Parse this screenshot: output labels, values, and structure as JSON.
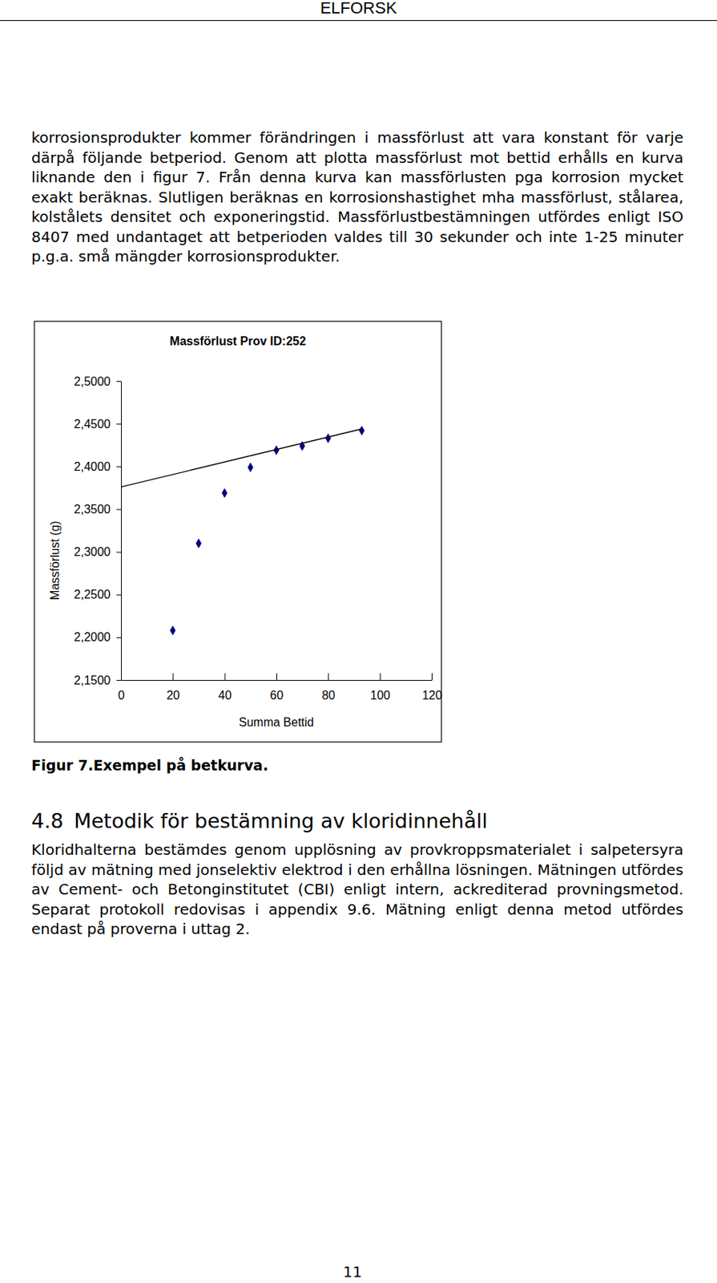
{
  "header": "ELFORSK",
  "paragraphs": [
    "korrosionsprodukter kommer förändringen i massförlust att vara konstant för varje därpå följande betperiod. Genom att plotta massförlust mot bettid erhålls en kurva liknande den i figur 7. Från denna kurva kan massförlusten pga korrosion mycket exakt beräknas. Slutligen beräknas en korrosionshastighet mha massförlust, stålarea, kolstålets densitet och exponeringstid. Massförlustbestämningen utfördes enligt ISO 8407 med undantaget att betperioden valdes till 30 sekunder och inte 1-25 minuter p.g.a. små mängder korrosionsprodukter.",
    "Kloridhalterna bestämdes genom upplösning av provkroppsmaterialet i salpetersyra följd av mätning med jonselektiv elektrod i den erhållna lösningen. Mätningen utfördes av Cement- och Betonginstitutet (CBI) enligt intern, ackrediterad provningsmetod. Separat protokoll redovisas i appendix 9.6. Mätning enligt denna metod utfördes endast på proverna i uttag 2."
  ],
  "caption": "Figur 7.Exempel på betkurva.",
  "section": {
    "number": "4.8",
    "title": "Metodik för bestämning av kloridinnehåll"
  },
  "page_number": "11",
  "chart_data": {
    "type": "scatter",
    "title": "Massförlust Prov ID:252",
    "x_label": "Summa Bettid",
    "y_label": "Massförlust (g)",
    "xlim": [
      0,
      120
    ],
    "xticks": [
      0,
      20,
      40,
      60,
      80,
      100,
      120
    ],
    "ylim": [
      2.15,
      2.5
    ],
    "yticks": [
      {
        "value": 2.15,
        "label": "2,1500"
      },
      {
        "value": 2.2,
        "label": "2,2000"
      },
      {
        "value": 2.25,
        "label": "2,2500"
      },
      {
        "value": 2.3,
        "label": "2,3000"
      },
      {
        "value": 2.35,
        "label": "2,3500"
      },
      {
        "value": 2.4,
        "label": "2,4000"
      },
      {
        "value": 2.45,
        "label": "2,4500"
      },
      {
        "value": 2.5,
        "label": "2,5000"
      }
    ],
    "grid": false,
    "series": [
      {
        "type": "scatter",
        "color": "#000080",
        "marker": "diamond",
        "x": [
          20,
          30,
          40,
          50,
          60,
          70,
          80,
          93
        ],
        "values": [
          2.208,
          2.31,
          2.369,
          2.399,
          2.419,
          2.424,
          2.433,
          2.442
        ]
      },
      {
        "type": "line",
        "color": "#000000",
        "line_style": "solid",
        "x": [
          0,
          93
        ],
        "values": [
          2.376,
          2.444
        ]
      }
    ]
  }
}
